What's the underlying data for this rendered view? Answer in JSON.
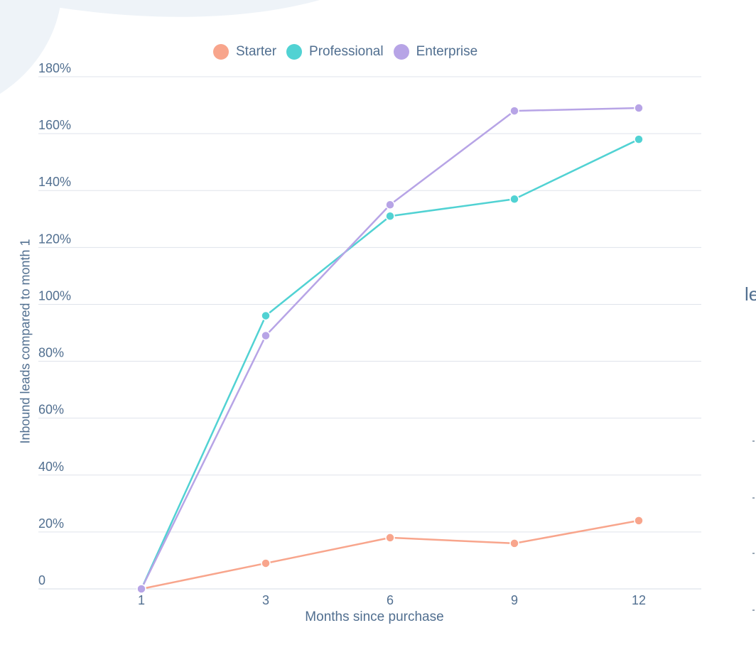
{
  "chart_data": {
    "type": "line",
    "title": "",
    "xlabel": "Months since purchase",
    "ylabel": "Inbound leads compared to month 1",
    "x": [
      "1",
      "3",
      "6",
      "9",
      "12"
    ],
    "ylim": [
      0,
      180
    ],
    "yticks": [
      {
        "value": 0,
        "label": "0"
      },
      {
        "value": 20,
        "label": "20%"
      },
      {
        "value": 40,
        "label": "40%"
      },
      {
        "value": 60,
        "label": "60%"
      },
      {
        "value": 80,
        "label": "80%"
      },
      {
        "value": 100,
        "label": "100%"
      },
      {
        "value": 120,
        "label": "120%"
      },
      {
        "value": 140,
        "label": "140%"
      },
      {
        "value": 160,
        "label": "160%"
      },
      {
        "value": 180,
        "label": "180%"
      }
    ],
    "grid": true,
    "legend_position": "top-center",
    "series": [
      {
        "name": "Starter",
        "color": "#f8a58c",
        "values": [
          0,
          9,
          18,
          16,
          24
        ]
      },
      {
        "name": "Professional",
        "color": "#51d2d3",
        "values": [
          0,
          96,
          131,
          137,
          158
        ]
      },
      {
        "name": "Enterprise",
        "color": "#b7a4e6",
        "values": [
          0,
          89,
          135,
          168,
          169
        ]
      }
    ]
  },
  "edge_text": "le"
}
